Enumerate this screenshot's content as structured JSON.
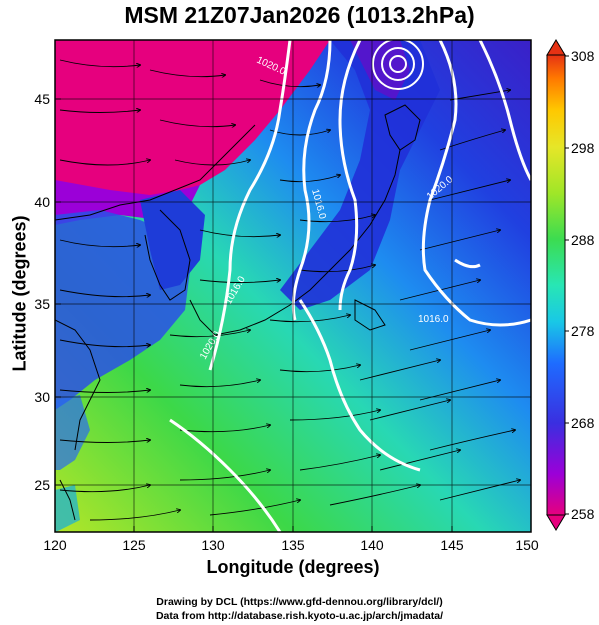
{
  "title": "MSM 21Z07Jan2026 (1013.2hPa)",
  "axes": {
    "xlabel": "Longitude (degrees)",
    "ylabel": "Latitude  (degrees)",
    "x_ticks": [
      "120",
      "125",
      "130",
      "135",
      "140",
      "145",
      "150"
    ],
    "y_ticks": [
      "25",
      "30",
      "35",
      "40",
      "45"
    ],
    "x_range": [
      120,
      150
    ],
    "y_range": [
      22.5,
      48
    ]
  },
  "colorbar": {
    "ticks": [
      "308",
      "298",
      "288",
      "278",
      "268",
      "258"
    ],
    "range": [
      258,
      308
    ],
    "colors": [
      "#e6007e",
      "#9b00d8",
      "#3a2fe0",
      "#1e6cff",
      "#19c8e6",
      "#28e6b4",
      "#3cdc50",
      "#a0e628",
      "#e6e628",
      "#ffc800",
      "#ff7800",
      "#e63214"
    ]
  },
  "contour_labels": [
    "1020.0",
    "1016.0",
    "1020.0",
    "1016.0",
    "1020.0",
    "1016.0"
  ],
  "credits": {
    "line1": "Drawing by DCL (https://www.gfd-dennou.org/library/dcl/)",
    "line2": "Data from http://database.rish.kyoto-u.ac.jp/arch/jmadata/"
  }
}
